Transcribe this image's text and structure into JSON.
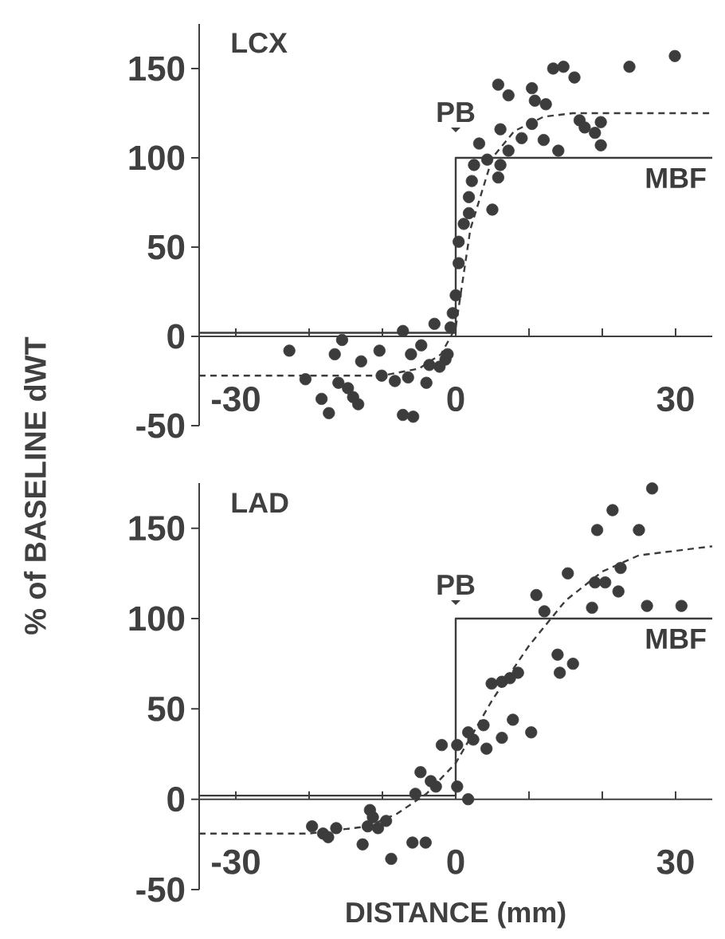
{
  "chart_data": [
    {
      "type": "scatter",
      "title": "LCX",
      "ylabel": "% of BASELINE dWT",
      "xlim": [
        -35,
        35
      ],
      "ylim": [
        -50,
        175
      ],
      "xticks": [
        -30,
        {
          "value": -20,
          "label": null
        },
        {
          "value": -10,
          "label": null
        },
        0,
        {
          "value": 10,
          "label": null
        },
        {
          "value": 20,
          "label": null
        },
        30
      ],
      "yticks": [
        -50,
        0,
        50,
        100,
        150
      ],
      "series": [
        {
          "type": "line",
          "name": "MBF",
          "color": "#3c3c3c",
          "line_style": "solid",
          "x": [
            -35,
            0,
            0,
            35
          ],
          "values": [
            2,
            2,
            100,
            100
          ]
        },
        {
          "type": "line",
          "color": "#3c3c3c",
          "line_style": "dashed",
          "x": [
            -35,
            -10,
            -5,
            -2,
            0,
            2,
            5,
            8,
            12,
            16,
            35
          ],
          "values": [
            -22,
            -22,
            -18,
            -10,
            5,
            60,
            100,
            115,
            123,
            125,
            125
          ]
        },
        {
          "marker": "circle",
          "color": "#3c3c3c",
          "x": [
            -22.7,
            -20.5,
            -18.3,
            -17.3,
            -16.5,
            -15.5,
            -16,
            -14.7,
            -14,
            -13.3,
            -12.9,
            -10.4,
            -10.1,
            -8.3,
            -7.2,
            -6.5,
            -6.1,
            -7.2,
            -5.8,
            -4.7,
            -4,
            -3.6,
            -2.9,
            -2.2,
            -1.4,
            -1.1,
            -0.7,
            -0.4,
            0,
            0.4,
            0.4,
            1.1,
            1.8,
            1.8,
            2.2,
            2.5,
            3.2,
            4.3,
            5,
            5.8,
            6.1,
            5.8,
            7.2,
            6.1,
            7.2,
            9,
            10.4,
            10.4,
            10.8,
            12,
            12.3,
            14,
            13.3,
            14.7,
            16.2,
            16.9,
            17.6,
            19,
            19.8,
            19.8,
            23.7,
            29.9
          ],
          "values": [
            -8,
            -24,
            -35,
            -43,
            -10,
            -2,
            -26,
            -29,
            -34,
            -38,
            -14,
            -8,
            -22,
            -25,
            3,
            -23,
            -10,
            -44,
            -45,
            -5,
            -26,
            -16,
            7,
            -17,
            -13,
            -10,
            5,
            13,
            23,
            41,
            53,
            63,
            69,
            78,
            87,
            96,
            108,
            99,
            71,
            89,
            96,
            141,
            135,
            116,
            104,
            111,
            139,
            119,
            132,
            110,
            130,
            104,
            150,
            151,
            145,
            121,
            117,
            114,
            120,
            107,
            151,
            157
          ]
        }
      ],
      "annotations": [
        "PB"
      ]
    },
    {
      "type": "scatter",
      "title": "LAD",
      "xlabel": "DISTANCE (mm)",
      "xlim": [
        -35,
        35
      ],
      "ylim": [
        -50,
        175
      ],
      "xticks": [
        -30,
        {
          "value": -20,
          "label": null
        },
        {
          "value": -10,
          "label": null
        },
        0,
        {
          "value": 10,
          "label": null
        },
        {
          "value": 20,
          "label": null
        },
        30
      ],
      "yticks": [
        -50,
        0,
        50,
        100,
        150
      ],
      "series": [
        {
          "type": "line",
          "name": "MBF",
          "color": "#3c3c3c",
          "line_style": "solid",
          "x": [
            -35,
            0,
            0,
            35
          ],
          "values": [
            2,
            2,
            100,
            100
          ]
        },
        {
          "type": "line",
          "color": "#3c3c3c",
          "line_style": "dashed",
          "x": [
            -35,
            -20,
            -12,
            -8,
            -4,
            0,
            5,
            10,
            15,
            20,
            25,
            35
          ],
          "values": [
            -19,
            -19,
            -15,
            -8,
            3,
            20,
            55,
            85,
            110,
            126,
            135,
            140
          ]
        },
        {
          "marker": "circle",
          "color": "#3c3c3c",
          "x": [
            -19.6,
            -18.1,
            -17.4,
            -16.3,
            -12.7,
            -12,
            -11.7,
            -11.3,
            -10.6,
            -9.5,
            -8.8,
            -5.9,
            -4.1,
            -5.5,
            -4.8,
            -3.4,
            -2.7,
            -1.9,
            0.2,
            0.2,
            1.7,
            1.7,
            2.4,
            3.8,
            4.2,
            4.9,
            6.3,
            6.3,
            7.4,
            7.8,
            8.5,
            10.3,
            11,
            12.1,
            13.9,
            14.2,
            16,
            15.3,
            18.6,
            19,
            20.4,
            22.2,
            22.5,
            19.3,
            21.4,
            25,
            26.8,
            26.1,
            30.8
          ],
          "values": [
            -15,
            -19,
            -21,
            -16,
            -25,
            -15,
            -6,
            -10,
            -16,
            -12,
            -33,
            -24,
            -24,
            3,
            15,
            10,
            7,
            30,
            30,
            7,
            0,
            37,
            33,
            41,
            28,
            64,
            65,
            34,
            67,
            44,
            70,
            37,
            113,
            104,
            80,
            70,
            75,
            125,
            106,
            120,
            120,
            115,
            128,
            149,
            160,
            149,
            172,
            107,
            107
          ]
        }
      ],
      "annotations": [
        "PB"
      ]
    }
  ]
}
